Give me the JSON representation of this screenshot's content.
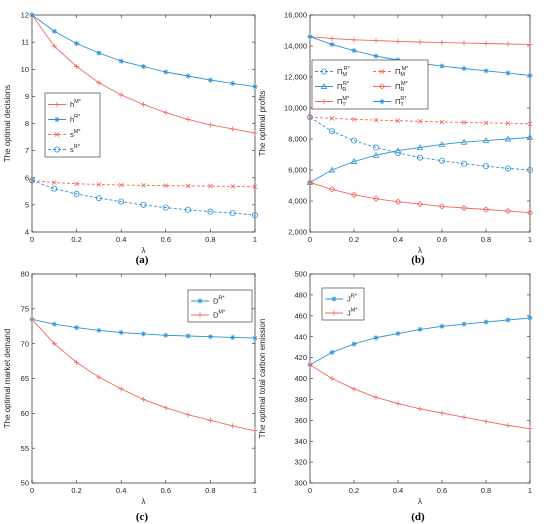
{
  "colors": {
    "blue": "#2e94d6",
    "red": "#f06b5d",
    "axis": "#262626",
    "grid": "#f0f0f0"
  },
  "chart_data": [
    {
      "id": "a",
      "type": "line",
      "caption": "(a)",
      "xlabel": "λ",
      "ylabel": "The optimal decisions",
      "xlim": [
        0,
        1
      ],
      "ylim": [
        4,
        12
      ],
      "xticks": [
        0,
        0.2,
        0.4,
        0.6,
        0.8,
        1
      ],
      "xtick_labels": [
        "0",
        "0.2",
        "0.4",
        "0.6",
        "0.8",
        "1"
      ],
      "yticks": [
        4,
        5,
        6,
        7,
        8,
        9,
        10,
        11,
        12
      ],
      "ytick_labels": [
        "4",
        "5",
        "6",
        "7",
        "8",
        "9",
        "10",
        "11",
        "12"
      ],
      "legend_position": "middle-left",
      "x": [
        0,
        0.1,
        0.2,
        0.3,
        0.4,
        0.5,
        0.6,
        0.7,
        0.8,
        0.9,
        1
      ],
      "series": [
        {
          "name": "h",
          "sup": "M*",
          "color": "red",
          "dash": "solid",
          "marker": "plus",
          "values": [
            12.0,
            10.85,
            10.1,
            9.5,
            9.05,
            8.7,
            8.4,
            8.15,
            7.95,
            7.8,
            7.65
          ]
        },
        {
          "name": "h",
          "sup": "R*",
          "color": "blue",
          "dash": "solid",
          "marker": "star",
          "values": [
            12.0,
            11.4,
            10.95,
            10.6,
            10.3,
            10.1,
            9.9,
            9.75,
            9.6,
            9.48,
            9.36
          ]
        },
        {
          "name": "s",
          "sup": "M*",
          "color": "red",
          "dash": "dash",
          "marker": "x",
          "values": [
            5.9,
            5.82,
            5.78,
            5.75,
            5.73,
            5.72,
            5.71,
            5.7,
            5.69,
            5.68,
            5.67
          ]
        },
        {
          "name": "s",
          "sup": "R*",
          "color": "blue",
          "dash": "dash",
          "marker": "circle",
          "values": [
            5.9,
            5.6,
            5.4,
            5.25,
            5.12,
            5.0,
            4.9,
            4.82,
            4.75,
            4.7,
            4.62
          ]
        }
      ]
    },
    {
      "id": "b",
      "type": "line",
      "caption": "(b)",
      "xlabel": "λ",
      "ylabel": "The optimal profits",
      "xlim": [
        0,
        1
      ],
      "ylim": [
        2000,
        16000
      ],
      "xticks": [
        0,
        0.2,
        0.4,
        0.6,
        0.8,
        1
      ],
      "xtick_labels": [
        "0",
        "0.2",
        "0.4",
        "0.6",
        "0.8",
        "1"
      ],
      "yticks": [
        2000,
        4000,
        6000,
        8000,
        10000,
        12000,
        14000,
        16000
      ],
      "ytick_labels": [
        "2,000",
        "4,000",
        "6,000",
        "8,000",
        "10,000",
        "12,000",
        "14,000",
        "16,000"
      ],
      "legend_position": "middle",
      "x": [
        0,
        0.1,
        0.2,
        0.3,
        0.4,
        0.5,
        0.6,
        0.7,
        0.8,
        0.9,
        1
      ],
      "series": [
        {
          "name": "Π",
          "sub": "M",
          "sup": "R*",
          "color": "blue",
          "dash": "dash",
          "marker": "circle",
          "values": [
            9400,
            8500,
            7900,
            7450,
            7100,
            6800,
            6600,
            6400,
            6250,
            6100,
            6000
          ]
        },
        {
          "name": "Π",
          "sub": "M",
          "sup": "M*",
          "color": "red",
          "dash": "dash",
          "marker": "x",
          "values": [
            9400,
            9330,
            9270,
            9220,
            9180,
            9140,
            9100,
            9070,
            9040,
            9010,
            8980
          ]
        },
        {
          "name": "Π",
          "sub": "R",
          "sup": "R*",
          "color": "blue",
          "dash": "solid",
          "marker": "triangle",
          "values": [
            5200,
            6000,
            6550,
            6950,
            7250,
            7450,
            7650,
            7800,
            7900,
            8000,
            8100
          ]
        },
        {
          "name": "Π",
          "sub": "R",
          "sup": "M*",
          "color": "red",
          "dash": "solid",
          "marker": "diamond",
          "values": [
            5200,
            4750,
            4400,
            4150,
            3950,
            3800,
            3650,
            3550,
            3450,
            3350,
            3250
          ]
        },
        {
          "name": "Π",
          "sub": "T",
          "sup": "M*",
          "color": "red",
          "dash": "solid",
          "marker": "plus",
          "values": [
            14600,
            14480,
            14400,
            14350,
            14300,
            14260,
            14220,
            14190,
            14160,
            14130,
            14100
          ]
        },
        {
          "name": "Π",
          "sub": "T",
          "sup": "R*",
          "color": "blue",
          "dash": "solid",
          "marker": "star",
          "values": [
            14600,
            14100,
            13700,
            13350,
            13100,
            12900,
            12700,
            12550,
            12400,
            12250,
            12100
          ]
        }
      ]
    },
    {
      "id": "c",
      "type": "line",
      "caption": "(c)",
      "xlabel": "λ",
      "ylabel": "The optimal market demand",
      "xlim": [
        0,
        1
      ],
      "ylim": [
        50,
        80
      ],
      "xticks": [
        0,
        0.2,
        0.4,
        0.6,
        0.8,
        1
      ],
      "xtick_labels": [
        "0",
        "0.2",
        "0.4",
        "0.6",
        "0.8",
        "1"
      ],
      "yticks": [
        50,
        55,
        60,
        65,
        70,
        75,
        80
      ],
      "ytick_labels": [
        "50",
        "55",
        "60",
        "65",
        "70",
        "75",
        "80"
      ],
      "legend_position": "top-right",
      "x": [
        0,
        0.1,
        0.2,
        0.3,
        0.4,
        0.5,
        0.6,
        0.7,
        0.8,
        0.9,
        1
      ],
      "series": [
        {
          "name": "D",
          "sup": "R*",
          "color": "blue",
          "dash": "solid",
          "marker": "star",
          "values": [
            73.5,
            72.8,
            72.3,
            71.9,
            71.6,
            71.4,
            71.2,
            71.1,
            71.0,
            70.9,
            70.8
          ]
        },
        {
          "name": "D",
          "sup": "M*",
          "color": "red",
          "dash": "solid",
          "marker": "plus",
          "values": [
            73.5,
            70.0,
            67.3,
            65.2,
            63.5,
            62.0,
            60.8,
            59.8,
            59.0,
            58.2,
            57.5
          ]
        }
      ]
    },
    {
      "id": "d",
      "type": "line",
      "caption": "(d)",
      "xlabel": "λ",
      "ylabel": "The optimal total carbon emission",
      "xlim": [
        0,
        1
      ],
      "ylim": [
        300,
        500
      ],
      "xticks": [
        0,
        0.2,
        0.4,
        0.6,
        0.8,
        1
      ],
      "xtick_labels": [
        "0",
        "0.2",
        "0.4",
        "0.6",
        "0.8",
        "1"
      ],
      "yticks": [
        300,
        320,
        340,
        360,
        380,
        400,
        420,
        440,
        460,
        480,
        500
      ],
      "ytick_labels": [
        "300",
        "320",
        "340",
        "360",
        "380",
        "400",
        "420",
        "440",
        "460",
        "480",
        "500"
      ],
      "legend_position": "top-left",
      "x": [
        0,
        0.1,
        0.2,
        0.3,
        0.4,
        0.5,
        0.6,
        0.7,
        0.8,
        0.9,
        1
      ],
      "series": [
        {
          "name": "J",
          "sup": "R*",
          "color": "blue",
          "dash": "solid",
          "marker": "star",
          "values": [
            413,
            425,
            433,
            439,
            443,
            447,
            450,
            452,
            454,
            456,
            458
          ]
        },
        {
          "name": "J",
          "sup": "M*",
          "color": "red",
          "dash": "solid",
          "marker": "plus",
          "values": [
            413,
            400,
            390,
            382,
            376,
            371,
            367,
            363,
            359,
            355,
            352
          ]
        }
      ]
    }
  ]
}
